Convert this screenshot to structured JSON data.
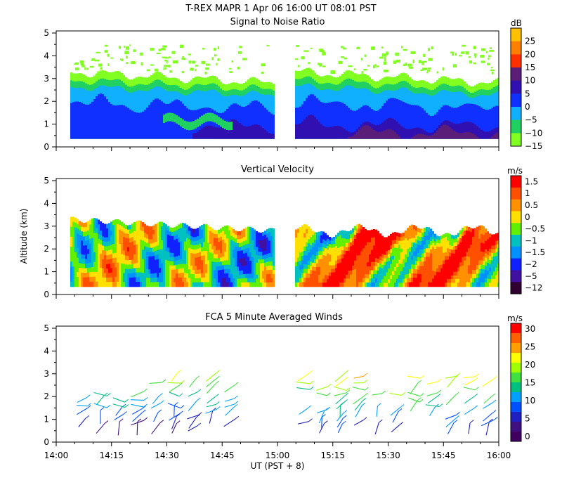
{
  "header": {
    "title": "T-REX   MAPR   1 Apr 06   16:00 UT   08:01   PST"
  },
  "axes": {
    "ylabel": "Altitude (km)",
    "xlabel": "UT  (PST + 8)",
    "y_ticks": [
      "0",
      "1",
      "2",
      "3",
      "4",
      "5"
    ],
    "x_ticks": [
      "14:00",
      "14:15",
      "14:30",
      "14:45",
      "15:00",
      "15:15",
      "15:30",
      "15:45",
      "16:00"
    ]
  },
  "chart_data": [
    {
      "type": "heatmap",
      "title": "Signal to Noise Ratio",
      "ylabel": "Altitude (km)",
      "ylim": [
        0,
        5
      ],
      "xlim": [
        "14:00",
        "16:00"
      ],
      "colorbar": {
        "unit": "dB",
        "labels": [
          "25",
          "20",
          "15",
          "10",
          "5",
          "0",
          "−5",
          "−10",
          "−15"
        ],
        "colors": [
          "#ffc000",
          "#ff8000",
          "#ff3000",
          "#5a1e78",
          "#3010b0",
          "#1030ff",
          "#10b0ff",
          "#20d060",
          "#80ff20"
        ]
      }
    },
    {
      "type": "heatmap",
      "title": "Vertical Velocity",
      "ylabel": "Altitude (km)",
      "ylim": [
        0,
        5
      ],
      "xlim": [
        "14:00",
        "16:00"
      ],
      "colorbar": {
        "unit": "m/s",
        "labels": [
          "1.5",
          "1",
          "0.5",
          "0",
          "−0.5",
          "−1",
          "−1.5",
          "−2",
          "−5",
          "−12"
        ],
        "colors": [
          "#ff0000",
          "#ff5000",
          "#ff9000",
          "#ffe000",
          "#60f000",
          "#00c0c0",
          "#0090ff",
          "#1020ff",
          "#4010a0",
          "#300030"
        ]
      }
    },
    {
      "type": "scatter",
      "title": "FCA 5 Minute Averaged Winds",
      "ylabel": "Altitude (km)",
      "ylim": [
        0,
        5
      ],
      "xlim": [
        "14:00",
        "16:00"
      ],
      "colorbar": {
        "unit": "m/s",
        "labels": [
          "30",
          "25",
          "20",
          "15",
          "10",
          "5",
          "0"
        ],
        "colors": [
          "#ff0000",
          "#ff6000",
          "#ffa000",
          "#ffff00",
          "#a0ff00",
          "#40e040",
          "#00c080",
          "#00a0ff",
          "#0050ff",
          "#2020c0",
          "#401080",
          "#400060"
        ]
      }
    }
  ]
}
